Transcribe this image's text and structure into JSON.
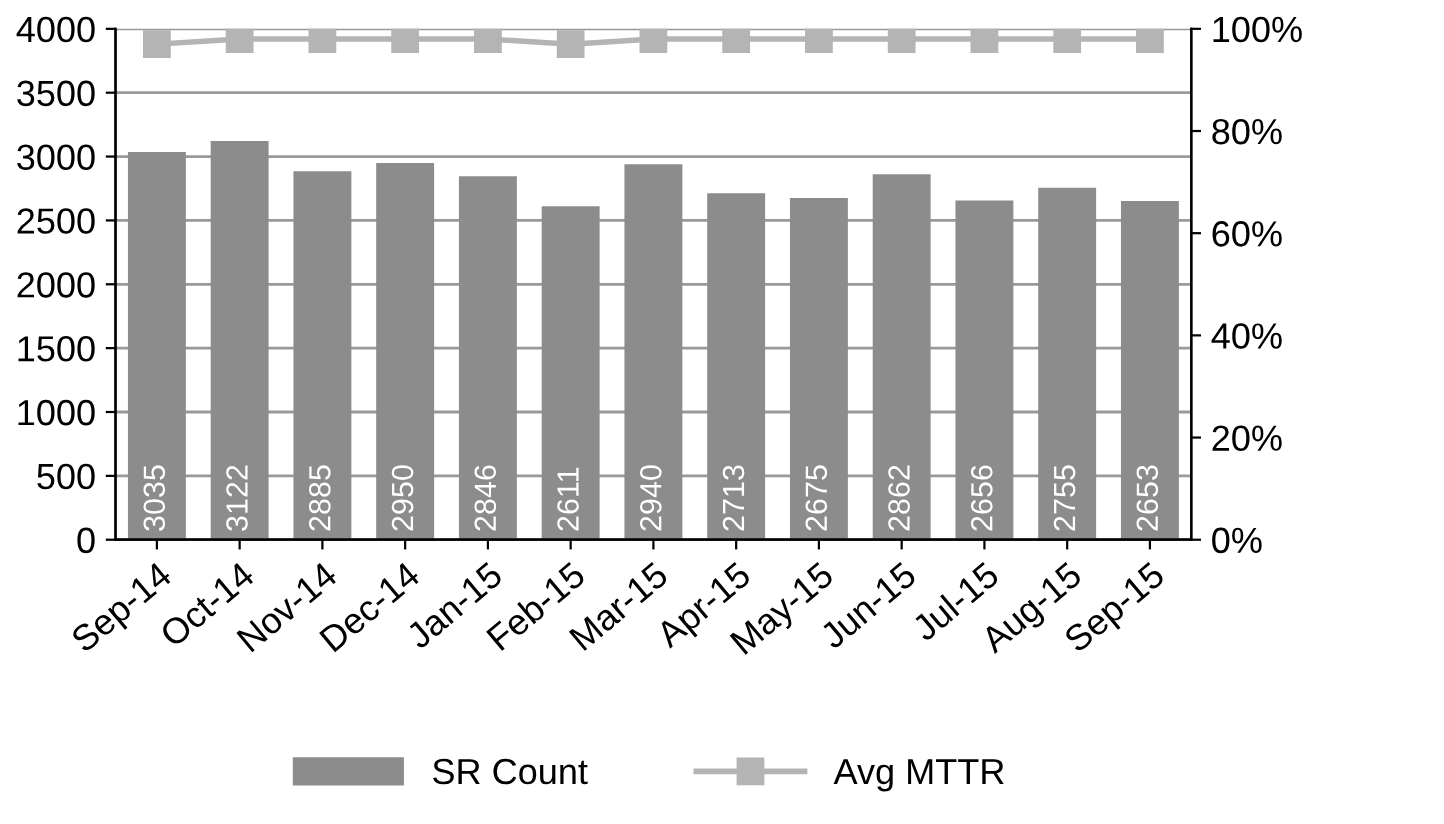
{
  "chart_data": {
    "type": "bar",
    "categories": [
      "Sep-14",
      "Oct-14",
      "Nov-14",
      "Dec-14",
      "Jan-15",
      "Feb-15",
      "Mar-15",
      "Apr-15",
      "May-15",
      "Jun-15",
      "Jul-15",
      "Aug-15",
      "Sep-15"
    ],
    "series": [
      {
        "name": "SR Count",
        "color": "#8c8c8c",
        "values": [
          3035,
          3122,
          2885,
          2950,
          2846,
          2611,
          2940,
          2713,
          2675,
          2862,
          2656,
          2755,
          2653
        ],
        "value_labels": [
          "3035",
          "3122",
          "2885",
          "2950",
          "2846",
          "2611",
          "2940",
          "2713",
          "2675",
          "2862",
          "2656",
          "2755",
          "2653"
        ]
      },
      {
        "name": "Avg MTTR",
        "type": "line",
        "axis": "y2",
        "color": "#b4b4b4",
        "marker": "square",
        "values": [
          97,
          98,
          98,
          98,
          98,
          97,
          98,
          98,
          98,
          98,
          98,
          98,
          98
        ]
      }
    ],
    "ylim": [
      0,
      4000
    ],
    "yticks": [
      0,
      500,
      1000,
      1500,
      2000,
      2500,
      3000,
      3500,
      4000
    ],
    "y2lim": [
      0,
      100
    ],
    "y2ticks": [
      {
        "value": 0,
        "label": "0%"
      },
      {
        "value": 20,
        "label": "20%"
      },
      {
        "value": 40,
        "label": "40%"
      },
      {
        "value": 60,
        "label": "60%"
      },
      {
        "value": 80,
        "label": "80%"
      },
      {
        "value": 100,
        "label": "100%"
      }
    ],
    "grid": "y",
    "legend": "bottom"
  }
}
